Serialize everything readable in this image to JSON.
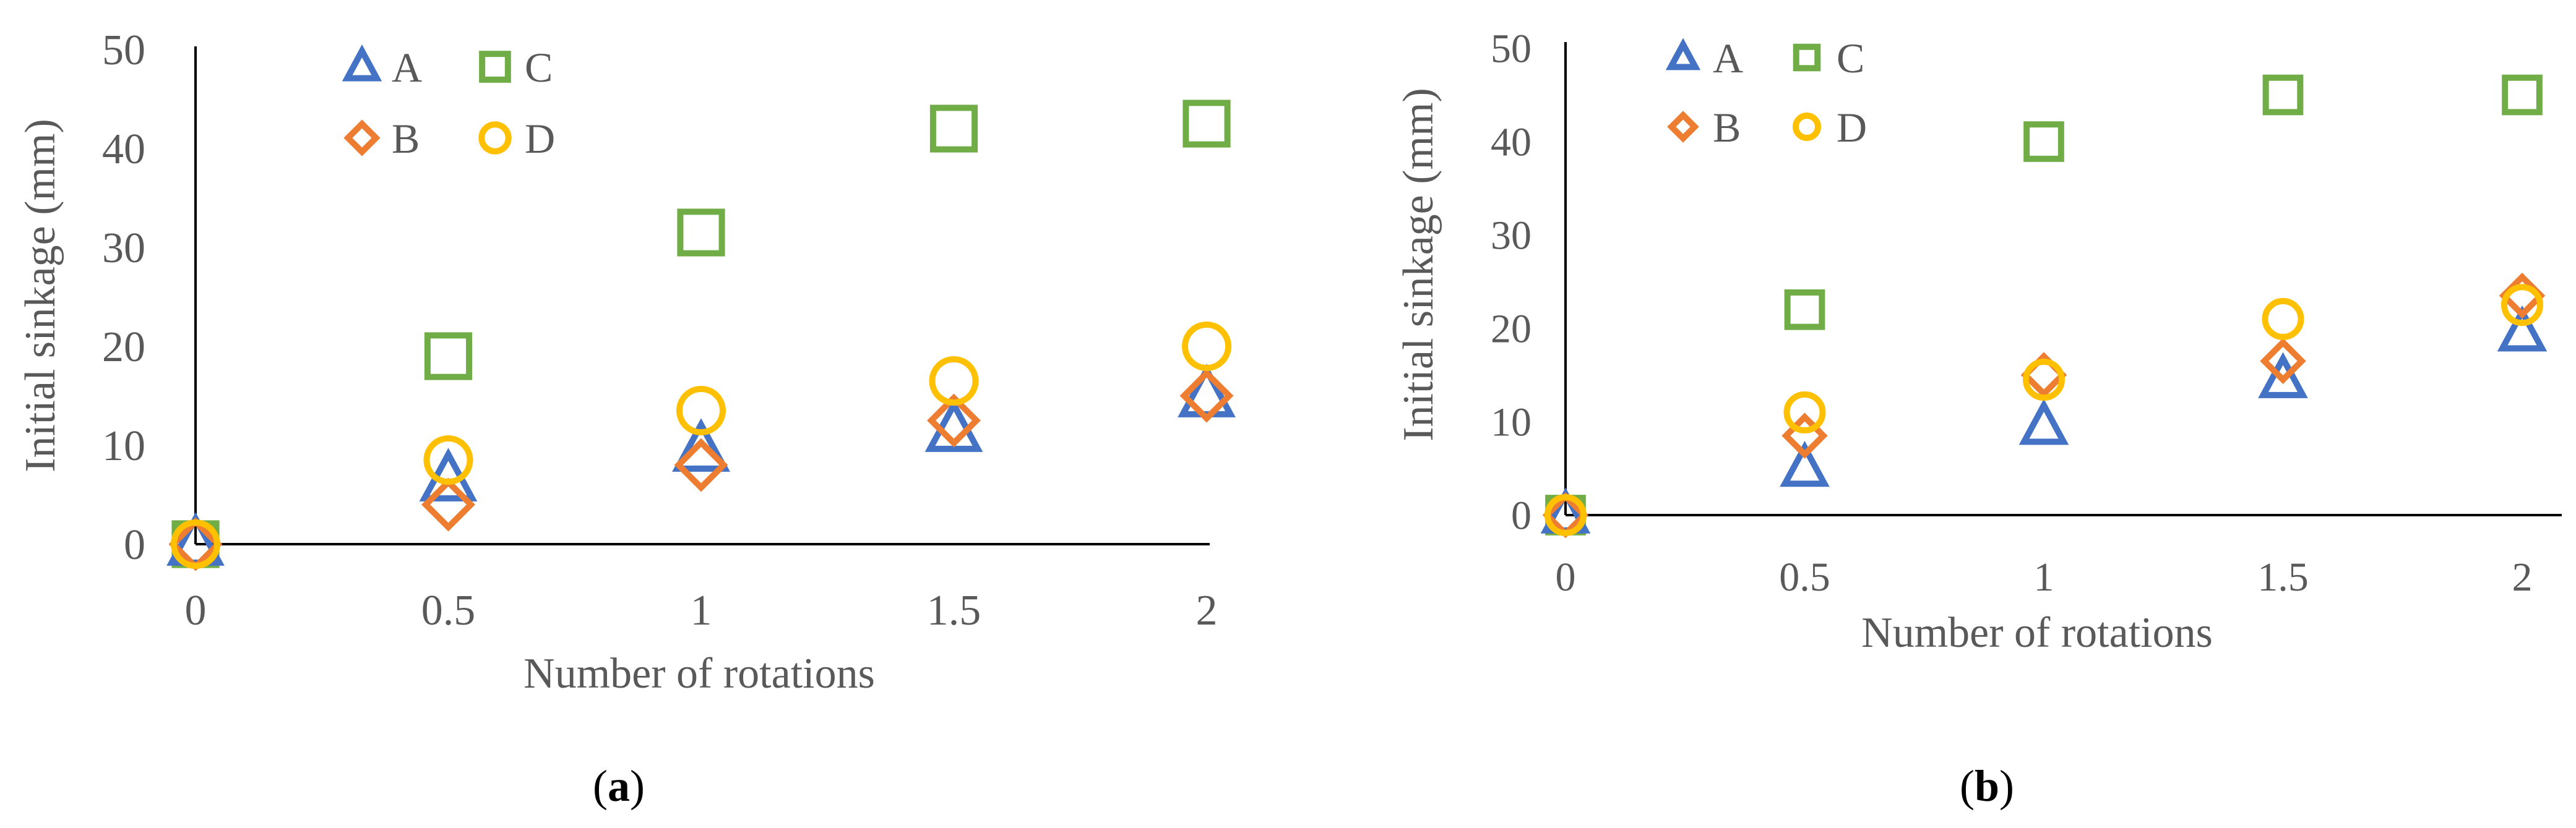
{
  "chart_data": [
    {
      "type": "scatter",
      "panel_label": "a",
      "xlabel": "Number of rotations",
      "ylabel": "Initial  sinkage (mm)",
      "xticks": [
        "0",
        "0.5",
        "1",
        "1.5",
        "2"
      ],
      "yticks": [
        "0",
        "10",
        "20",
        "30",
        "40",
        "50"
      ],
      "xlim": [
        0,
        2
      ],
      "ylim": [
        0,
        50
      ],
      "legend_position": "top-left",
      "x": [
        0,
        0.5,
        1,
        1.5,
        2
      ],
      "series": [
        {
          "name": "A",
          "marker": "triangle",
          "color": "#4472C4",
          "values": [
            0,
            6.5,
            9.5,
            11.5,
            15
          ]
        },
        {
          "name": "B",
          "marker": "diamond",
          "color": "#ED7D31",
          "values": [
            0,
            4,
            8,
            12.5,
            15
          ]
        },
        {
          "name": "C",
          "marker": "square",
          "color": "#70AD47",
          "values": [
            0,
            19,
            31.5,
            42,
            42.5
          ]
        },
        {
          "name": "D",
          "marker": "circle",
          "color": "#FFC000",
          "values": [
            0,
            8.5,
            13.5,
            16.5,
            20
          ]
        }
      ]
    },
    {
      "type": "scatter",
      "panel_label": "b",
      "xlabel": "Number of rotations",
      "ylabel": "Initial sinkage (mm)",
      "xticks": [
        "0",
        "0.5",
        "1",
        "1.5",
        "2"
      ],
      "yticks": [
        "0",
        "10",
        "20",
        "30",
        "40",
        "50"
      ],
      "xlim": [
        0,
        2
      ],
      "ylim": [
        0,
        50
      ],
      "legend_position": "top-left",
      "x": [
        0,
        0.5,
        1,
        1.5,
        2
      ],
      "series": [
        {
          "name": "A",
          "marker": "triangle",
          "color": "#4472C4",
          "values": [
            0,
            5,
            9.5,
            14.5,
            19.5
          ]
        },
        {
          "name": "B",
          "marker": "diamond",
          "color": "#ED7D31",
          "values": [
            0,
            8.5,
            15,
            16.5,
            23.5
          ]
        },
        {
          "name": "C",
          "marker": "square",
          "color": "#70AD47",
          "values": [
            0,
            22,
            40,
            45,
            45
          ]
        },
        {
          "name": "D",
          "marker": "circle",
          "color": "#FFC000",
          "values": [
            0,
            11,
            14.5,
            21,
            22.5
          ]
        }
      ]
    }
  ]
}
